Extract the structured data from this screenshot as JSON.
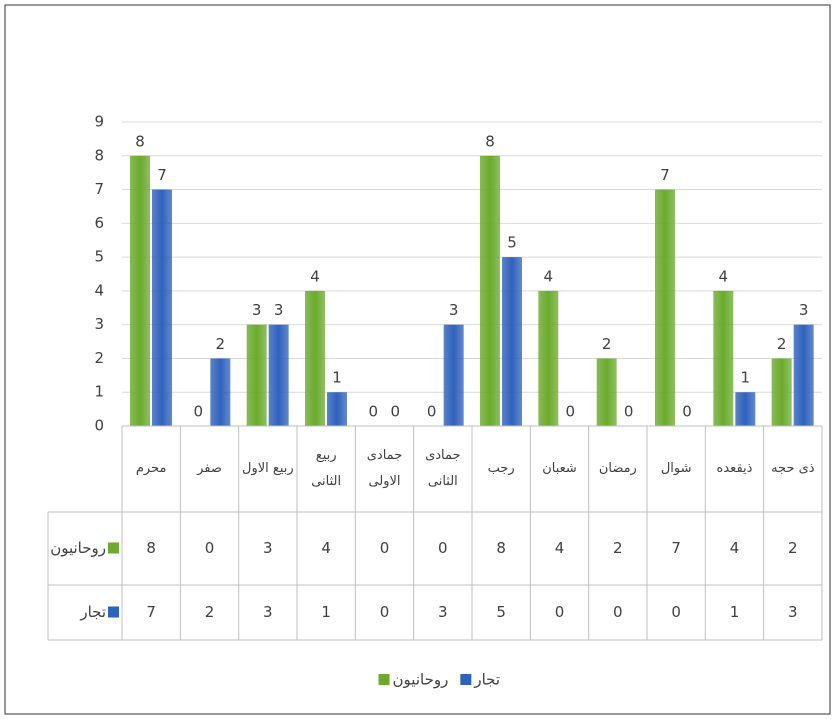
{
  "chart_data": {
    "type": "bar",
    "categories": [
      "محرم",
      "صفر",
      "ربیع الاول",
      "ربیع الثانی",
      "جمادی الاولی",
      "جمادی الثانی",
      "رجب",
      "شعبان",
      "رمضان",
      "شوال",
      "ذیقعده",
      "ذی حجه"
    ],
    "series": [
      {
        "name": "روحانیون",
        "color": "#6aab2c",
        "values": [
          8,
          0,
          3,
          4,
          0,
          0,
          8,
          4,
          2,
          7,
          4,
          2
        ]
      },
      {
        "name": "تجار",
        "color": "#2f62bd",
        "values": [
          7,
          2,
          3,
          1,
          0,
          3,
          5,
          0,
          0,
          0,
          1,
          3
        ]
      }
    ],
    "ylim": [
      0,
      9
    ],
    "yticks": [
      0,
      1,
      2,
      3,
      4,
      5,
      6,
      7,
      8,
      9
    ],
    "grid": true,
    "data_table": true,
    "legend": "bottom"
  }
}
